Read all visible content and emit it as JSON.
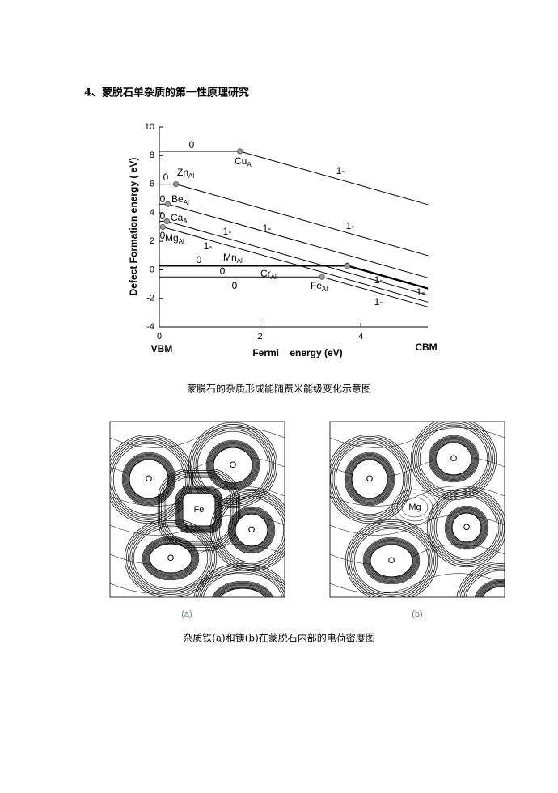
{
  "heading": "4、蒙脱石单杂质的第一性原理研究",
  "chart_data": {
    "type": "line",
    "ylabel": "Defect Formation energy ( eV)",
    "xlabel": "Fermi    energy (eV)",
    "x_end_labels": [
      "VBM",
      "CBM"
    ],
    "xlim": [
      0,
      5.33
    ],
    "ylim": [
      -4,
      10
    ],
    "xticks": [
      0,
      2,
      4
    ],
    "yticks": [
      -4,
      -2,
      0,
      2,
      4,
      6,
      8,
      10
    ],
    "color": "#000000",
    "series": [
      {
        "name": "Cu",
        "subscript": "Al",
        "x": [
          0,
          1.6,
          5.33
        ],
        "values": [
          8.3,
          8.3,
          4.57
        ]
      },
      {
        "name": "Zn",
        "subscript": "Al",
        "x": [
          0,
          0.33,
          5.33
        ],
        "values": [
          6.0,
          6.0,
          1.0
        ]
      },
      {
        "name": "Be",
        "subscript": "Al",
        "x": [
          0,
          0.17,
          5.33
        ],
        "values": [
          4.6,
          4.6,
          -0.56
        ]
      },
      {
        "name": "Ca",
        "subscript": "Al",
        "x": [
          0,
          0.15,
          5.33
        ],
        "values": [
          3.4,
          3.4,
          -1.78
        ]
      },
      {
        "name": "Mg",
        "subscript": "Al",
        "x": [
          0,
          0.07,
          5.33
        ],
        "values": [
          3.0,
          3.0,
          -2.26
        ]
      },
      {
        "name": "Mn",
        "subscript": "Al",
        "x": [
          0,
          3.73,
          5.33
        ],
        "values": [
          0.3,
          0.3,
          -1.3
        ]
      },
      {
        "name": "Cr",
        "subscript": "Al",
        "x": [
          0,
          3.73,
          5.33
        ],
        "values": [
          0.25,
          0.25,
          -1.35
        ]
      },
      {
        "name": "Fe",
        "subscript": "Al",
        "x": [
          0,
          3.23,
          5.33
        ],
        "values": [
          -0.5,
          -0.5,
          -2.6
        ]
      }
    ],
    "annotations": [
      "0",
      "1-",
      "0",
      "0",
      "0",
      "0",
      "1-",
      "1-",
      "1-",
      "1-",
      "0",
      "0",
      "0",
      "1-",
      "1-",
      "1-"
    ]
  },
  "chart_caption": "蒙脱石的杂质形成能随费米能级变化示意图",
  "density_maps": {
    "panels": [
      {
        "label": "(a)",
        "atoms": [
          "O",
          "O",
          "Fe",
          "O",
          "O"
        ]
      },
      {
        "label": "(b)",
        "atoms": [
          "O",
          "O",
          "Mg",
          "O",
          "O"
        ]
      }
    ],
    "caption": "杂质铁(a)和镁(b)在蒙脱石内部的电荷密度图"
  }
}
